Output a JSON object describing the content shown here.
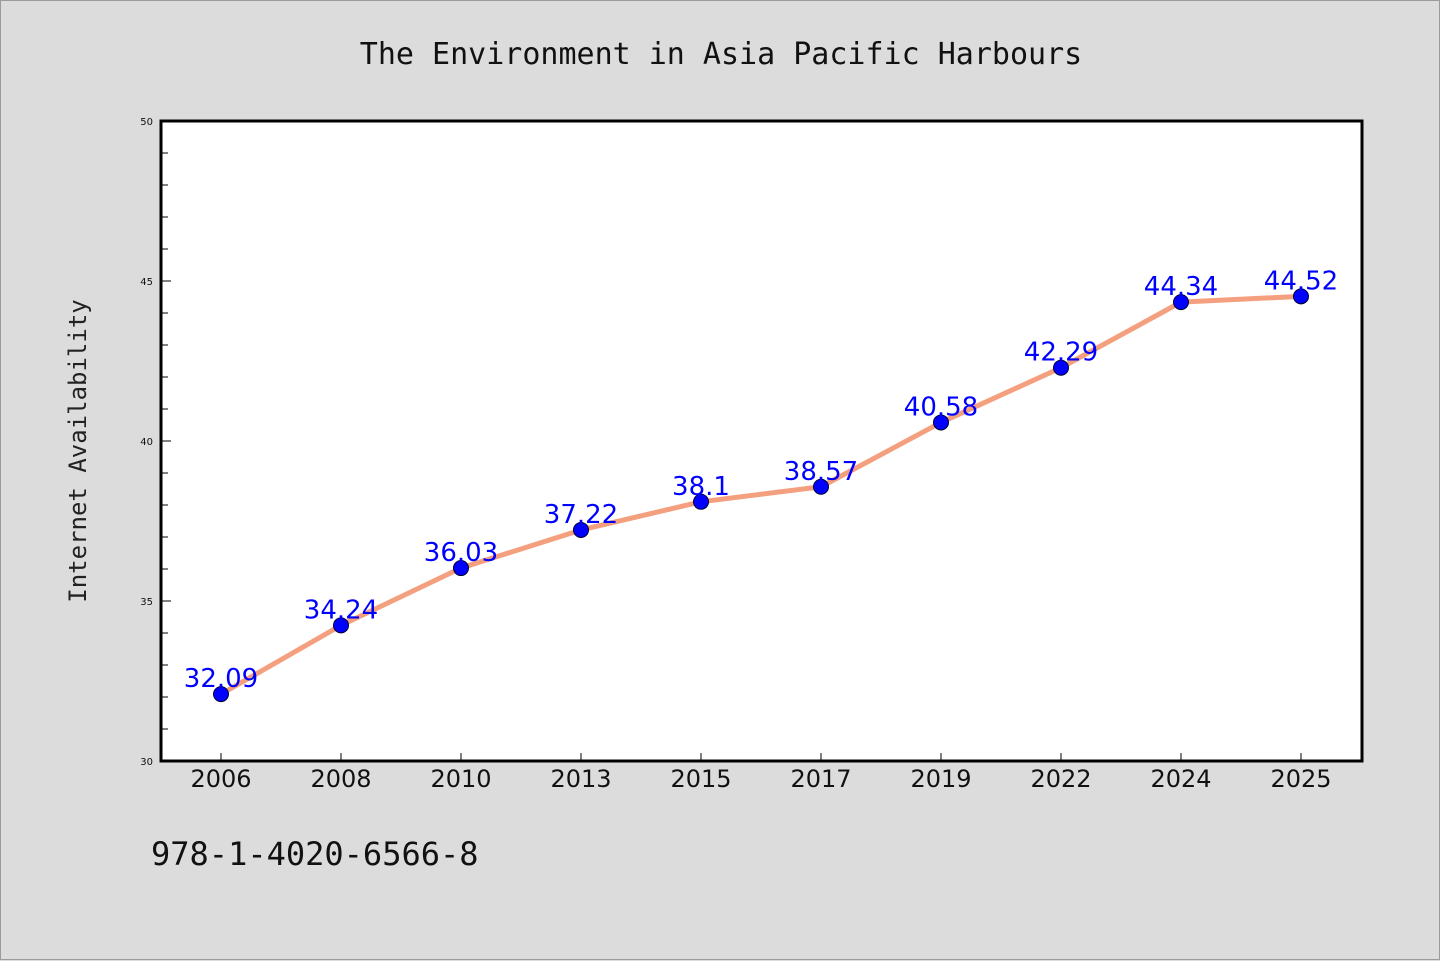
{
  "chart_data": {
    "type": "line",
    "title": "The Environment in Asia Pacific Harbours",
    "xlabel": "",
    "ylabel": "Internet Availability",
    "categories": [
      "2006",
      "2008",
      "2010",
      "2013",
      "2015",
      "2017",
      "2019",
      "2022",
      "2024",
      "2025"
    ],
    "series": [
      {
        "values": [
          32.09,
          34.24,
          36.03,
          37.22,
          38.1,
          38.57,
          40.58,
          42.29,
          44.34,
          44.52
        ]
      }
    ],
    "data_labels": [
      "32.09",
      "34.24",
      "36.03",
      "37.22",
      "38.1",
      "38.57",
      "40.58",
      "42.29",
      "44.34",
      "44.52"
    ],
    "ylim": [
      30,
      50
    ],
    "yticks": [
      30,
      35,
      40,
      45,
      50
    ],
    "grid": false,
    "legend": "none",
    "colors": {
      "line": "#f4a07e",
      "marker": "#0000ff",
      "data_label": "#0000ff",
      "plot_background": "#ffffff",
      "page_background": "#dcdcdc"
    }
  },
  "footer": {
    "text": "978-1-4020-6566-8"
  }
}
